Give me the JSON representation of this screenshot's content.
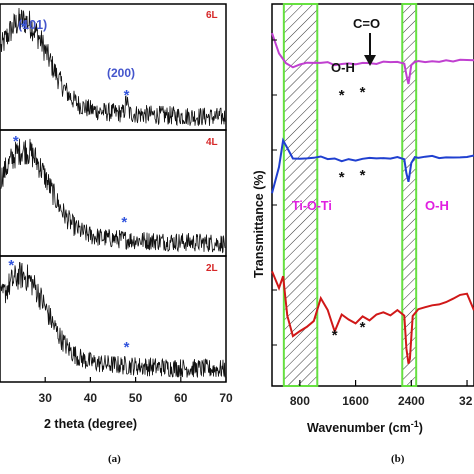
{
  "chart_data": [
    {
      "type": "line",
      "panel_label": "(a)",
      "xlabel": "2 theta (degree)",
      "ylabel": "",
      "xlim": [
        20,
        70
      ],
      "xticks": [
        "30",
        "40",
        "50",
        "60",
        "70"
      ],
      "series": [
        {
          "name": "6L",
          "color": "#d62728",
          "peak_x": 25.3,
          "peak_height": 0.78,
          "peaks": [
            [
              25.3,
              "(101)"
            ],
            [
              48.0,
              "(200)"
            ]
          ]
        },
        {
          "name": "4L",
          "color": "#d62728",
          "peak_x": 25.5,
          "peak_height": 0.75,
          "peaks": [
            [
              23.5,
              ""
            ],
            [
              47.5,
              ""
            ]
          ]
        },
        {
          "name": "2L",
          "color": "#d62728",
          "peak_x": 25.0,
          "peak_height": 0.75,
          "peaks": [
            [
              22.5,
              ""
            ],
            [
              48.0,
              ""
            ]
          ]
        }
      ],
      "annotations": [
        "(101)",
        "(200)"
      ],
      "marker": "*"
    },
    {
      "type": "line",
      "panel_label": "(b)",
      "xlabel": "Wavenumber (cm",
      "xlabel_sup": "-1",
      "xlabel_end": ")",
      "ylabel": "Transmittance (%)",
      "xlim": [
        400,
        3300
      ],
      "xticks": [
        "800",
        "1600",
        "2400",
        "32"
      ],
      "highlight_bands": [
        [
          570,
          1050
        ],
        [
          2270,
          2470
        ]
      ],
      "series": [
        {
          "name": "6L",
          "color": "#c040d0",
          "x": [
            400,
            500,
            600,
            700,
            800,
            900,
            1000,
            1100,
            1200,
            1300,
            1400,
            1500,
            1600,
            1700,
            1800,
            1900,
            2000,
            2100,
            2200,
            2300,
            2340,
            2360,
            2400,
            2450,
            2500,
            2600,
            2700,
            2800,
            2900,
            3000,
            3100,
            3200,
            3300
          ],
          "y": [
            0.95,
            0.7,
            0.55,
            0.5,
            0.55,
            0.57,
            0.55,
            0.57,
            0.56,
            0.52,
            0.55,
            0.56,
            0.54,
            0.56,
            0.55,
            0.56,
            0.57,
            0.58,
            0.58,
            0.56,
            0.35,
            0.28,
            0.52,
            0.58,
            0.58,
            0.58,
            0.57,
            0.58,
            0.6,
            0.59,
            0.6,
            0.6,
            0.6
          ]
        },
        {
          "name": "4L",
          "color": "#2040d0",
          "x": [
            400,
            500,
            560,
            620,
            700,
            800,
            900,
            1000,
            1100,
            1200,
            1300,
            1400,
            1500,
            1600,
            1700,
            1800,
            1900,
            2000,
            2100,
            2200,
            2300,
            2330,
            2360,
            2400,
            2450,
            2500,
            2600,
            2700,
            2800,
            2900,
            3000,
            3100,
            3200,
            3300
          ],
          "y": [
            0.1,
            0.45,
            0.8,
            0.7,
            0.55,
            0.55,
            0.56,
            0.55,
            0.57,
            0.55,
            0.56,
            0.52,
            0.55,
            0.53,
            0.55,
            0.56,
            0.55,
            0.57,
            0.56,
            0.58,
            0.55,
            0.35,
            0.25,
            0.5,
            0.58,
            0.56,
            0.57,
            0.58,
            0.57,
            0.56,
            0.58,
            0.57,
            0.58,
            0.58
          ]
        },
        {
          "name": "2L",
          "color": "#d01818",
          "x": [
            400,
            500,
            560,
            620,
            700,
            800,
            900,
            1000,
            1100,
            1200,
            1300,
            1400,
            1500,
            1600,
            1700,
            1800,
            1900,
            2000,
            2100,
            2200,
            2300,
            2330,
            2360,
            2380,
            2420,
            2500,
            2600,
            2700,
            2800,
            2900,
            3000,
            3100,
            3200,
            3300
          ],
          "y": [
            0.9,
            0.75,
            0.85,
            0.5,
            0.3,
            0.35,
            0.4,
            0.45,
            0.65,
            0.55,
            0.35,
            0.5,
            0.45,
            0.42,
            0.48,
            0.45,
            0.5,
            0.52,
            0.5,
            0.55,
            0.5,
            0.2,
            0.05,
            0.1,
            0.5,
            0.55,
            0.57,
            0.58,
            0.6,
            0.62,
            0.65,
            0.68,
            0.7,
            0.55
          ]
        }
      ],
      "annotations": {
        "co": "C=O",
        "oh_top": "O-H",
        "tioti": "Ti-O-Ti",
        "oh_mid": "O-H"
      },
      "marker": "*"
    }
  ],
  "colors": {
    "axis": "#000000",
    "star": "#3355dd",
    "miller": "#4455cc",
    "layer": "#d62728",
    "band_border": "#66e040",
    "tioti": "#e020e0",
    "oh_mid": "#e020e0"
  }
}
